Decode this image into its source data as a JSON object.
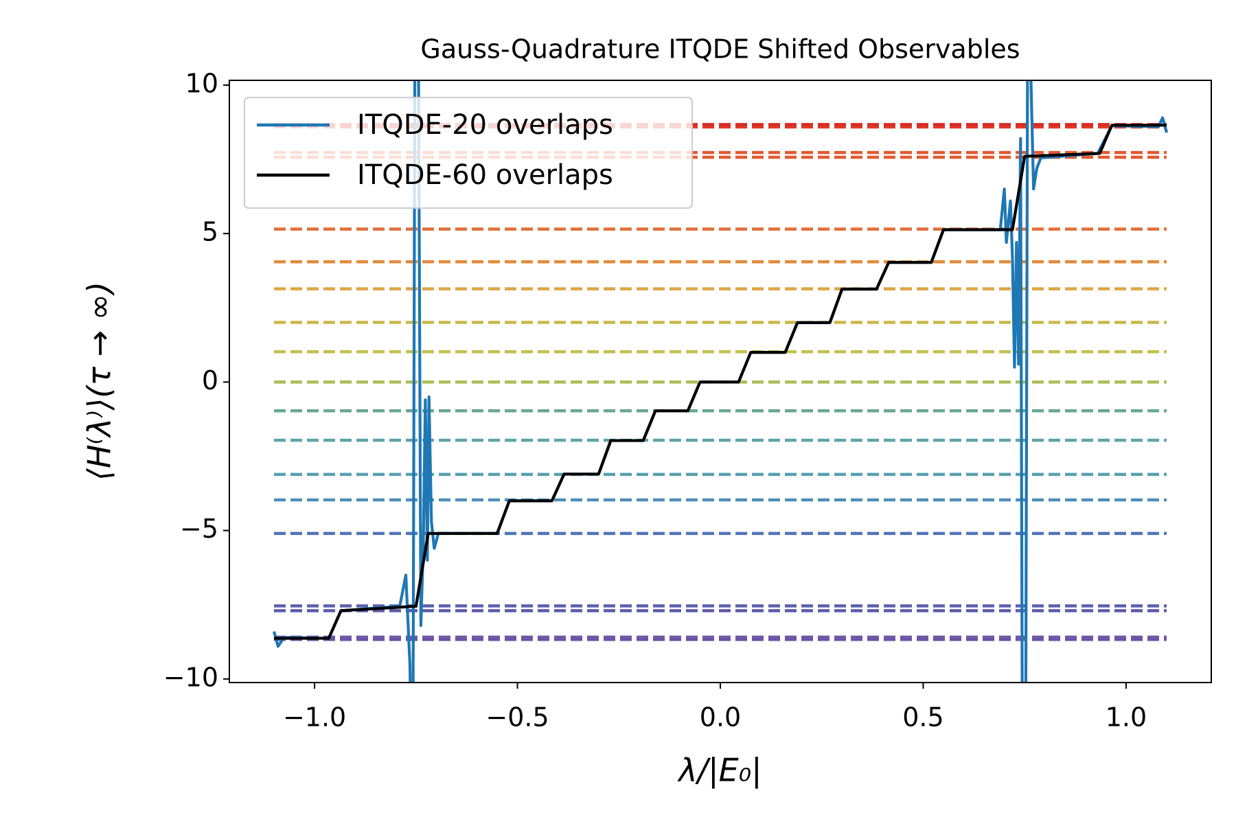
{
  "chart_data": {
    "type": "line",
    "title": "Gauss-Quadrature ITQDE Shifted Observables",
    "x_label": "λ/|E₀|",
    "y_label": "⟨H⁽λ⁾⟩(τ → ∞)",
    "xlim": [
      -1.21,
      1.21
    ],
    "ylim": [
      -10.12,
      10.16
    ],
    "xticks": [
      {
        "value": -1.0,
        "label": "−1.0"
      },
      {
        "value": -0.5,
        "label": "−0.5"
      },
      {
        "value": 0.0,
        "label": "0.0"
      },
      {
        "value": 0.5,
        "label": "0.5"
      },
      {
        "value": 1.0,
        "label": "1.0"
      }
    ],
    "yticks": [
      {
        "value": -10,
        "label": "−10"
      },
      {
        "value": -5,
        "label": "−5"
      },
      0,
      5,
      10
    ],
    "grid": false,
    "legend": "upper left",
    "hlines": {
      "xrange": [
        -1.1,
        1.1
      ],
      "values": [
        -8.67,
        -8.59,
        -7.7,
        -7.54,
        -5.1,
        -3.97,
        -3.11,
        -1.96,
        -0.97,
        0,
        1.02,
        2.01,
        3.14,
        4.05,
        5.15,
        7.57,
        7.73,
        8.59,
        8.67
      ],
      "colors": [
        "#6c54a6",
        "#6f58a8",
        "#5d5aa9",
        "#5a62ad",
        "#4f74b9",
        "#4f8fb8",
        "#56a0b0",
        "#5fa5a8",
        "#67a894",
        "#a9bf57",
        "#c3c14c",
        "#c8b84a",
        "#dea542",
        "#e38b3a",
        "#e26f36",
        "#e35b30",
        "#e25a32",
        "#de3a28",
        "#d92b26"
      ]
    },
    "series": [
      {
        "name": "ITQDE-20 overlaps",
        "color": "#1f77b4",
        "x": [
          -1.1,
          -1.09,
          -1.075,
          -0.965,
          -0.935,
          -0.79,
          -0.775,
          -0.765,
          -0.758,
          -0.752,
          -0.745,
          -0.738,
          -0.732,
          -0.727,
          -0.722,
          -0.718,
          -0.712,
          -0.705,
          -0.695,
          -0.55,
          -0.52,
          -0.415,
          -0.385,
          -0.3,
          -0.27,
          -0.19,
          -0.16,
          -0.08,
          -0.05,
          0.045,
          0.075,
          0.16,
          0.19,
          0.27,
          0.3,
          0.385,
          0.415,
          0.52,
          0.55,
          0.69,
          0.7,
          0.705,
          0.715,
          0.72,
          0.725,
          0.73,
          0.735,
          0.74,
          0.745,
          0.752,
          0.758,
          0.765,
          0.772,
          0.78,
          0.79,
          0.93,
          0.965,
          1.08,
          1.09,
          1.1
        ],
        "values": [
          -8.4,
          -8.9,
          -8.6,
          -8.63,
          -7.7,
          -7.55,
          -6.5,
          -9.5,
          -15,
          15,
          15,
          -8.2,
          -5.5,
          -0.6,
          -6,
          -0.5,
          -4.7,
          -5.6,
          -5.1,
          -5.1,
          -4.0,
          -4.0,
          -3.1,
          -3.1,
          -1.97,
          -1.97,
          -0.97,
          -0.97,
          0,
          0,
          1.0,
          1.0,
          2.0,
          2.0,
          3.13,
          3.13,
          4.03,
          4.03,
          5.13,
          5.13,
          6.5,
          4.7,
          6.1,
          4.2,
          0.5,
          4.7,
          0.6,
          8.2,
          -15,
          -15,
          15,
          10.5,
          6.5,
          7.2,
          7.55,
          7.7,
          8.63,
          8.6,
          8.9,
          8.4
        ]
      },
      {
        "name": "ITQDE-60 overlaps",
        "color": "#000000",
        "x": [
          -1.1,
          -0.965,
          -0.935,
          -0.75,
          -0.72,
          -0.55,
          -0.52,
          -0.415,
          -0.385,
          -0.3,
          -0.27,
          -0.19,
          -0.16,
          -0.08,
          -0.05,
          0.045,
          0.075,
          0.16,
          0.19,
          0.27,
          0.3,
          0.385,
          0.415,
          0.52,
          0.55,
          0.72,
          0.75,
          0.935,
          0.965,
          1.1
        ],
        "values": [
          -8.63,
          -8.63,
          -7.7,
          -7.55,
          -5.1,
          -5.1,
          -4.0,
          -4.0,
          -3.1,
          -3.1,
          -1.97,
          -1.97,
          -0.97,
          -0.97,
          0,
          0,
          1.0,
          1.0,
          2.0,
          2.0,
          3.13,
          3.13,
          4.03,
          4.03,
          5.13,
          5.13,
          7.6,
          7.7,
          8.65,
          8.65
        ]
      }
    ]
  }
}
